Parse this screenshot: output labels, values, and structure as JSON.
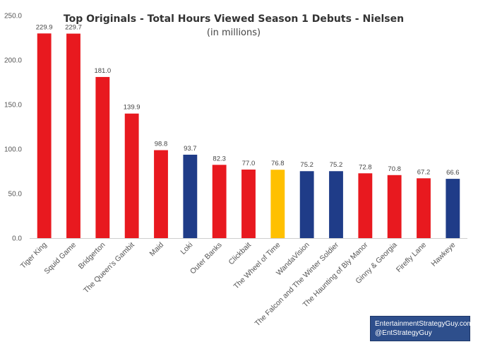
{
  "chart_data": {
    "type": "bar",
    "title": "Top Originals - Total Hours Viewed Season 1 Debuts - Nielsen",
    "subtitle": "(in millions)",
    "xlabel": "",
    "ylabel": "",
    "ylim": [
      0,
      250
    ],
    "yticks": [
      "0.0",
      "50.0",
      "100.0",
      "150.0",
      "200.0",
      "250.0"
    ],
    "grid": false,
    "legend": "none",
    "categories": [
      "Tiger King",
      "Squid Game",
      "Bridgerton",
      "The Queen's Gambit",
      "Maid",
      "Loki",
      "Outer Banks",
      "Clickbait",
      "The Wheel of Time",
      "WandaVision",
      "The Falcon and The Winter Soldier",
      "The Haunting of Bly Manor",
      "Ginny & Georgia",
      "Firefly Lane",
      "Hawkeye"
    ],
    "values": [
      229.9,
      229.7,
      181.0,
      139.9,
      98.8,
      93.7,
      82.3,
      77.0,
      76.8,
      75.2,
      75.2,
      72.8,
      70.8,
      67.2,
      66.6
    ],
    "value_labels": [
      "229.9",
      "229.7",
      "181.0",
      "139.9",
      "98.8",
      "93.7",
      "82.3",
      "77.0",
      "76.8",
      "75.2",
      "75.2",
      "72.8",
      "70.8",
      "67.2",
      "66.6"
    ],
    "bar_colors": [
      "#e8191f",
      "#e8191f",
      "#e8191f",
      "#e8191f",
      "#e8191f",
      "#1f3c88",
      "#e8191f",
      "#e8191f",
      "#ffc000",
      "#1f3c88",
      "#1f3c88",
      "#e8191f",
      "#e8191f",
      "#e8191f",
      "#1f3c88"
    ]
  },
  "credit": {
    "line1": "EntertainmentStrategyGuy.com",
    "line2": "@EntStrategyGuy"
  }
}
